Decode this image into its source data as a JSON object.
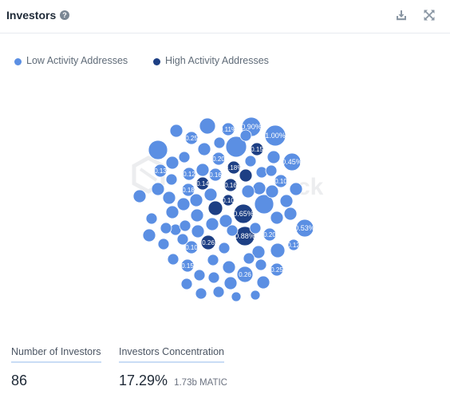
{
  "header": {
    "title": "Investors",
    "help_icon": "question-circle-icon",
    "actions": [
      {
        "name": "download",
        "icon": "download-icon"
      },
      {
        "name": "fullscreen",
        "icon": "expand-arrows-icon"
      }
    ]
  },
  "legend": [
    {
      "label": "Low Activity Addresses",
      "color": "#5b8fe3"
    },
    {
      "label": "High Activity Addresses",
      "color": "#1d3f84"
    }
  ],
  "colors": {
    "low_activity": "#5b8fe3",
    "high_activity": "#1d3f84",
    "label_text": "#ffffff",
    "metric_underline": "#c9dcf5"
  },
  "watermark_text": "ck",
  "bubbles": [
    {
      "label": "0.90%",
      "group": "low"
    },
    {
      "label": "1.00%",
      "group": "low"
    },
    {
      "label": "0.45%",
      "group": "low"
    },
    {
      "label": "0.53%",
      "group": "low"
    },
    {
      "label": "0.65%",
      "group": "high"
    },
    {
      "label": "0.88%",
      "group": "high"
    },
    {
      "label": "0.26",
      "group": "high"
    },
    {
      "label": "0.26",
      "group": "low"
    },
    {
      "label": "0.25",
      "group": "low"
    },
    {
      "label": "0.25",
      "group": "low"
    },
    {
      "label": "0.20",
      "group": "low"
    },
    {
      "label": "0.20",
      "group": "low"
    },
    {
      "label": "0.18%",
      "group": "high"
    },
    {
      "label": "0.18",
      "group": "low"
    },
    {
      "label": "0.16",
      "group": "low"
    },
    {
      "label": "0.16",
      "group": "high"
    },
    {
      "label": "0.15",
      "group": "high"
    },
    {
      "label": "0.15",
      "group": "low"
    },
    {
      "label": "0.14",
      "group": "high"
    },
    {
      "label": "0.13",
      "group": "low"
    },
    {
      "label": "0.12",
      "group": "low"
    },
    {
      "label": "0.12",
      "group": "low"
    },
    {
      "label": "0.11%",
      "group": "low"
    },
    {
      "label": "0.10",
      "group": "low"
    },
    {
      "label": "0.10",
      "group": "high"
    },
    {
      "label": "0.10",
      "group": "low"
    }
  ],
  "metrics": [
    {
      "label": "Number of Investors",
      "value": "86",
      "sub": ""
    },
    {
      "label": "Investors Concentration",
      "value": "17.29%",
      "sub": "1.73b MATIC"
    }
  ]
}
